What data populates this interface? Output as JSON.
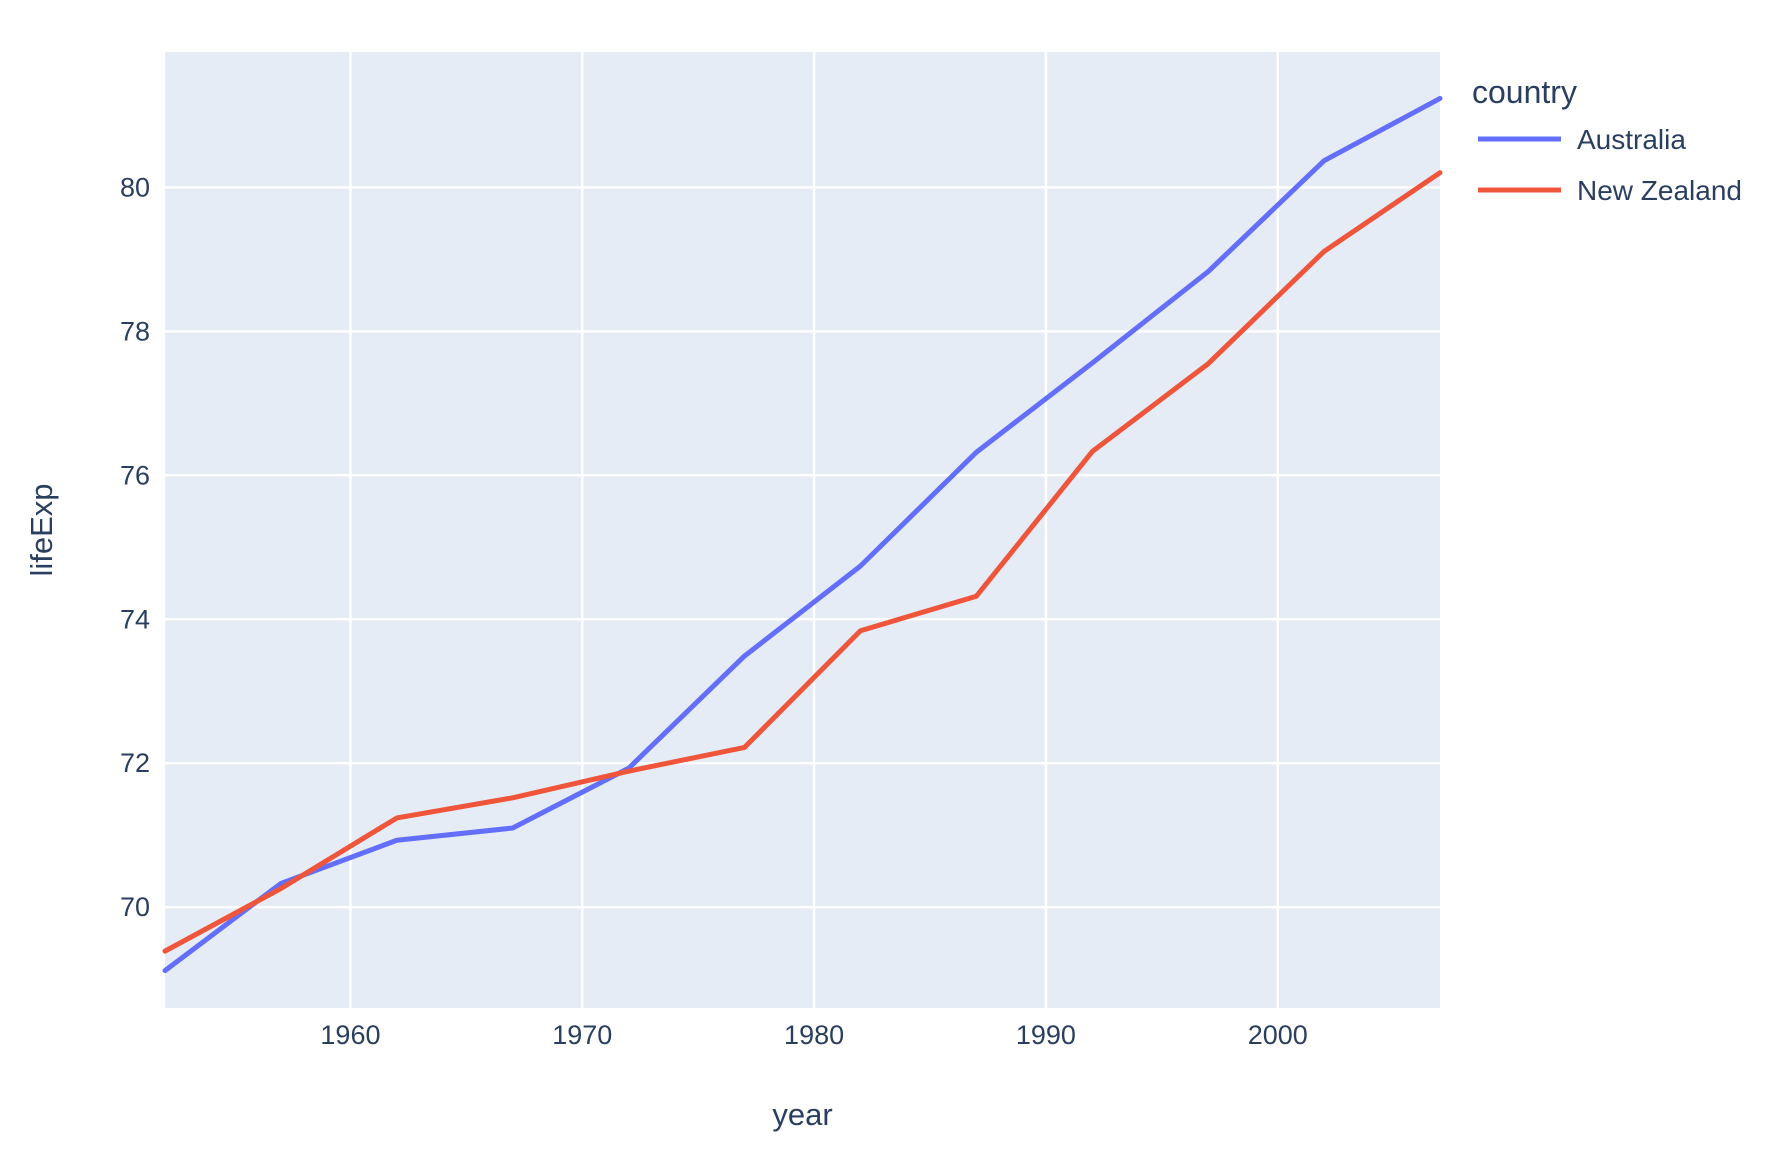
{
  "chart_data": {
    "type": "line",
    "title": "",
    "xlabel": "year",
    "ylabel": "lifeExp",
    "legend_title": "country",
    "legend_position": "right-top-outside",
    "x": [
      1952,
      1957,
      1962,
      1967,
      1972,
      1977,
      1982,
      1987,
      1992,
      1997,
      2002,
      2007
    ],
    "series": [
      {
        "name": "Australia",
        "color": "#636EFA",
        "values": [
          69.12,
          70.33,
          70.93,
          71.1,
          71.93,
          73.49,
          74.74,
          76.32,
          77.56,
          78.83,
          80.37,
          81.235
        ]
      },
      {
        "name": "New Zealand",
        "color": "#EF553B",
        "values": [
          69.39,
          70.26,
          71.24,
          71.52,
          71.89,
          72.22,
          73.84,
          74.32,
          76.33,
          77.55,
          79.11,
          80.204
        ]
      }
    ],
    "xlim": [
      1952,
      2007
    ],
    "ylim": [
      68.6,
      81.88
    ],
    "xticks": [
      1960,
      1970,
      1980,
      1990,
      2000
    ],
    "yticks": [
      70,
      72,
      74,
      76,
      78,
      80
    ],
    "grid": true,
    "style": {
      "plot_bg": "#E5ECF6",
      "paper_bg": "#FFFFFF",
      "grid_color": "#FFFFFF",
      "text_color": "#2A3F5F",
      "line_width": 5,
      "grid_width": 2.5,
      "tick_font_size": 27,
      "axis_title_font_size": 31,
      "legend_title_font_size": 32,
      "legend_item_font_size": 28
    }
  }
}
